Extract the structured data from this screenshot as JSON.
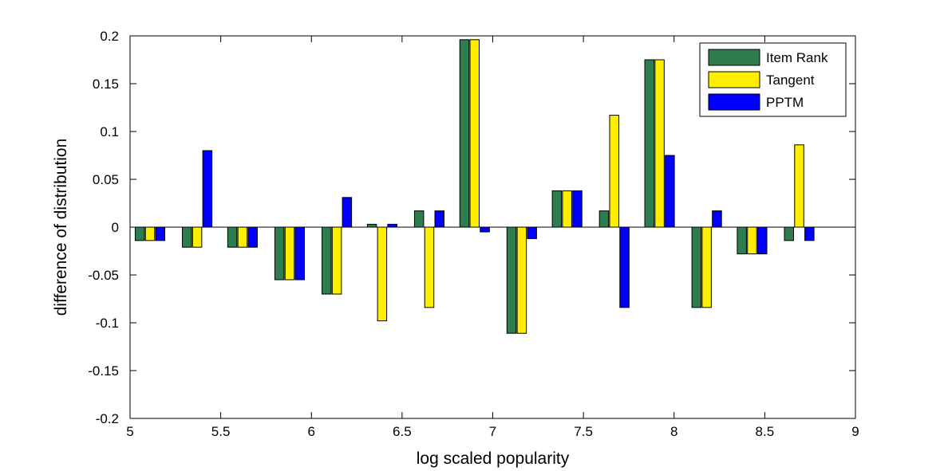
{
  "chart_data": {
    "type": "bar",
    "xlabel": "log scaled popularity",
    "ylabel": "difference of distribution",
    "xlim": [
      5,
      9
    ],
    "ylim": [
      -0.2,
      0.2
    ],
    "xticks": [
      "5",
      "5.5",
      "6",
      "6.5",
      "7",
      "7.5",
      "8",
      "8.5",
      "9"
    ],
    "yticks": [
      "-0.2",
      "-0.15",
      "-0.1",
      "-0.05",
      "0",
      "0.05",
      "0.1",
      "0.15",
      "0.2"
    ],
    "grid": false,
    "legend_position": "top-right",
    "x": [
      5.11,
      5.37,
      5.62,
      5.88,
      6.14,
      6.39,
      6.65,
      6.9,
      7.16,
      7.41,
      7.67,
      7.92,
      8.18,
      8.43,
      8.69
    ],
    "series": [
      {
        "name": "Item Rank",
        "color": "#2e7d4f",
        "values": [
          -0.014,
          -0.021,
          -0.021,
          -0.055,
          -0.07,
          0.003,
          0.017,
          0.196,
          -0.111,
          0.038,
          0.017,
          0.175,
          -0.084,
          -0.028,
          -0.014
        ]
      },
      {
        "name": "Tangent",
        "color": "#ffee00",
        "values": [
          -0.014,
          -0.021,
          -0.021,
          -0.055,
          -0.07,
          -0.098,
          -0.084,
          0.196,
          -0.111,
          0.038,
          0.117,
          0.175,
          -0.084,
          -0.028,
          0.086
        ]
      },
      {
        "name": "PPTM",
        "color": "#0000ff",
        "values": [
          -0.014,
          0.08,
          -0.021,
          -0.055,
          0.031,
          0.003,
          0.017,
          -0.005,
          -0.012,
          0.038,
          -0.084,
          0.075,
          0.017,
          -0.028,
          -0.014
        ]
      }
    ]
  }
}
